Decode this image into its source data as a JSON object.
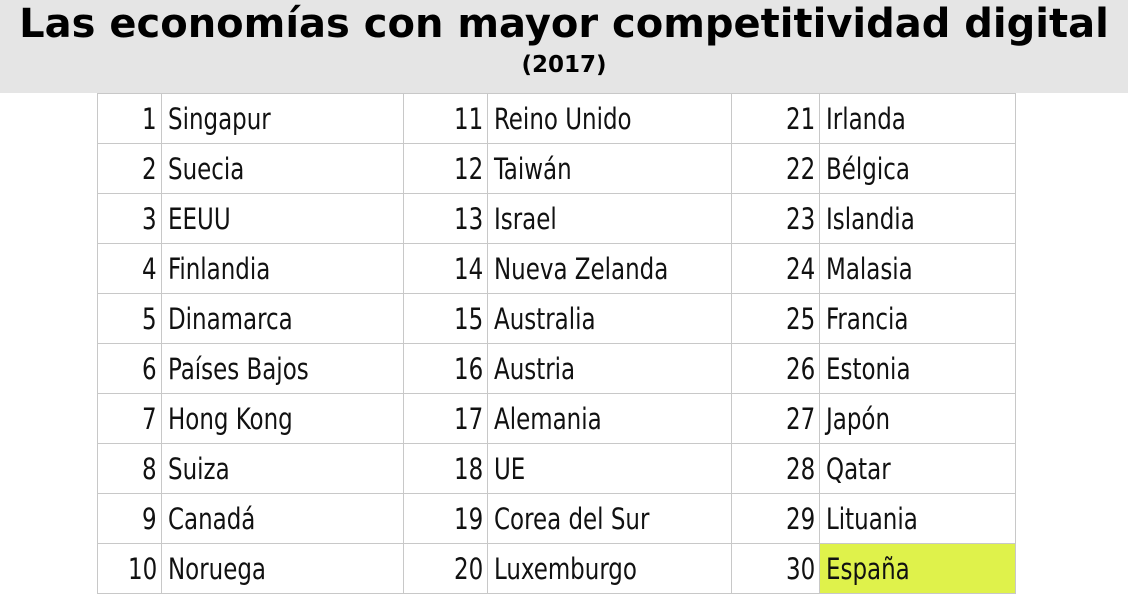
{
  "chart_data": {
    "type": "table",
    "title": "Las economías con mayor competitividad digital",
    "subtitle": "(2017)",
    "columns": [
      [
        {
          "rank": "1",
          "country": "Singapur"
        },
        {
          "rank": "2",
          "country": "Suecia"
        },
        {
          "rank": "3",
          "country": "EEUU"
        },
        {
          "rank": "4",
          "country": "Finlandia"
        },
        {
          "rank": "5",
          "country": "Dinamarca"
        },
        {
          "rank": "6",
          "country": "Países Bajos"
        },
        {
          "rank": "7",
          "country": "Hong Kong"
        },
        {
          "rank": "8",
          "country": "Suiza"
        },
        {
          "rank": "9",
          "country": "Canadá"
        },
        {
          "rank": "10",
          "country": "Noruega"
        }
      ],
      [
        {
          "rank": "11",
          "country": "Reino Unido"
        },
        {
          "rank": "12",
          "country": "Taiwán"
        },
        {
          "rank": "13",
          "country": "Israel"
        },
        {
          "rank": "14",
          "country": "Nueva Zelanda"
        },
        {
          "rank": "15",
          "country": "Australia"
        },
        {
          "rank": "16",
          "country": "Austria"
        },
        {
          "rank": "17",
          "country": "Alemania"
        },
        {
          "rank": "18",
          "country": "UE"
        },
        {
          "rank": "19",
          "country": "Corea del Sur"
        },
        {
          "rank": "20",
          "country": "Luxemburgo"
        }
      ],
      [
        {
          "rank": "21",
          "country": "Irlanda"
        },
        {
          "rank": "22",
          "country": "Bélgica"
        },
        {
          "rank": "23",
          "country": "Islandia"
        },
        {
          "rank": "24",
          "country": "Malasia"
        },
        {
          "rank": "25",
          "country": "Francia"
        },
        {
          "rank": "26",
          "country": "Estonia"
        },
        {
          "rank": "27",
          "country": "Japón"
        },
        {
          "rank": "28",
          "country": "Qatar"
        },
        {
          "rank": "29",
          "country": "Lituania"
        },
        {
          "rank": "30",
          "country": "España",
          "highlight": true
        }
      ]
    ],
    "highlight_color": "#dff24b",
    "header_background": "#e5e5e5",
    "grid": true
  }
}
